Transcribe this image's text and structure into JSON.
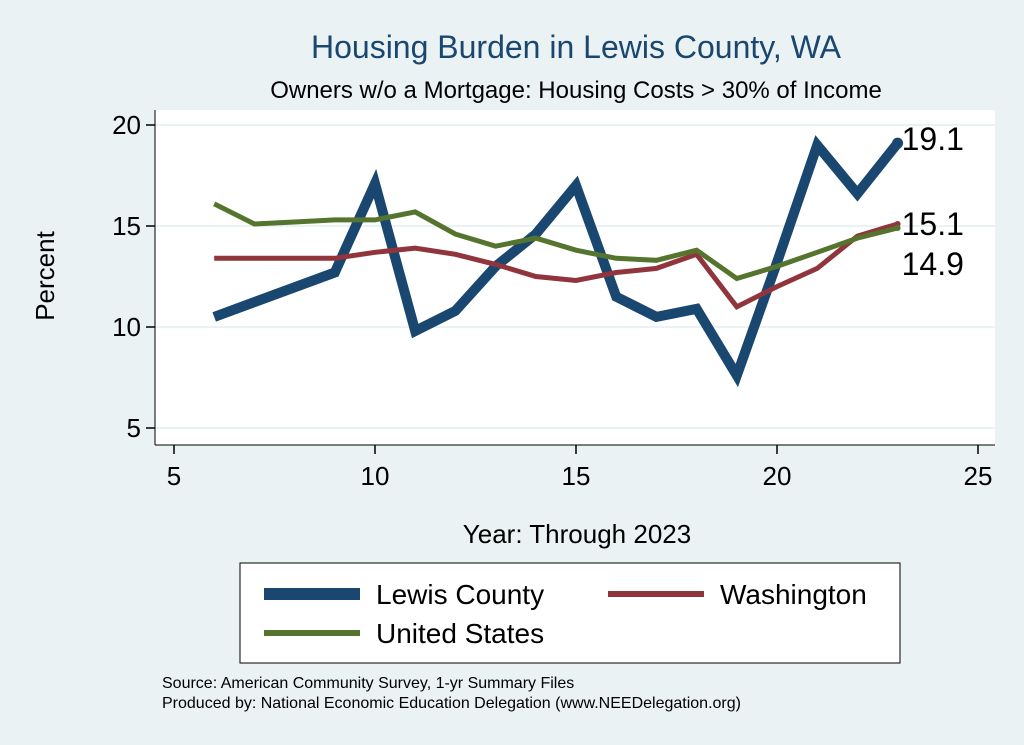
{
  "chart_data": {
    "type": "line",
    "title": "Housing Burden in Lewis County, WA",
    "subtitle": "Owners w/o a Mortgage: Housing Costs > 30% of Income",
    "xlabel": "Year: Through 2023",
    "ylabel": "Percent",
    "xlim": [
      5,
      25
    ],
    "ylim": [
      5,
      20
    ],
    "xticks": [
      5,
      10,
      15,
      20,
      25
    ],
    "yticks": [
      5,
      10,
      15,
      20
    ],
    "grid": true,
    "legend_position": "bottom",
    "series": [
      {
        "name": "Lewis County",
        "color": "#1a476f",
        "x": [
          6,
          9,
          10,
          11,
          12,
          13,
          14,
          15,
          16,
          17,
          18,
          19,
          20,
          21,
          22,
          23
        ],
        "values": [
          10.5,
          12.7,
          17.1,
          9.8,
          10.8,
          13.0,
          14.6,
          17.0,
          11.5,
          10.5,
          10.9,
          7.6,
          13.2,
          19.0,
          16.6,
          19.1
        ],
        "end_label": "19.1"
      },
      {
        "name": "Washington",
        "color": "#90353b",
        "x": [
          6,
          7,
          8,
          9,
          10,
          11,
          12,
          13,
          14,
          15,
          16,
          17,
          18,
          19,
          20,
          21,
          22,
          23
        ],
        "values": [
          13.4,
          13.4,
          13.4,
          13.4,
          13.7,
          13.9,
          13.6,
          13.1,
          12.5,
          12.3,
          12.7,
          12.9,
          13.6,
          11.0,
          12.0,
          12.9,
          14.5,
          15.1
        ],
        "end_label": "15.1"
      },
      {
        "name": "United States",
        "color": "#55752f",
        "x": [
          6,
          7,
          8,
          9,
          10,
          11,
          12,
          13,
          14,
          15,
          16,
          17,
          18,
          19,
          20,
          21,
          22,
          23
        ],
        "values": [
          16.1,
          15.1,
          15.2,
          15.3,
          15.3,
          15.7,
          14.6,
          14.0,
          14.4,
          13.8,
          13.4,
          13.3,
          13.8,
          12.4,
          13.0,
          13.7,
          14.4,
          14.9
        ],
        "end_label": "14.9"
      }
    ],
    "notes": [
      "Source: American Community Survey, 1-yr Summary Files",
      "Produced by: National Economic Education Delegation (www.NEEDelegation.org)"
    ]
  }
}
